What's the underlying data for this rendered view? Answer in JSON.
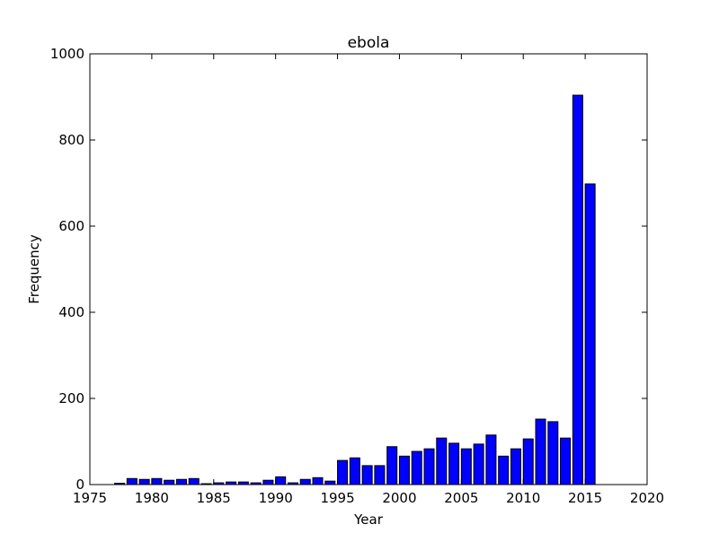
{
  "chart_data": {
    "type": "bar",
    "title": "ebola",
    "x_label": "Year",
    "y_label": "Frequency",
    "x": [
      1977,
      1978,
      1979,
      1980,
      1981,
      1982,
      1983,
      1984,
      1985,
      1986,
      1987,
      1988,
      1989,
      1990,
      1991,
      1992,
      1993,
      1994,
      1995,
      1996,
      1997,
      1998,
      1999,
      2000,
      2001,
      2002,
      2003,
      2004,
      2005,
      2006,
      2007,
      2008,
      2009,
      2010,
      2011,
      2012,
      2013,
      2014,
      2015
    ],
    "values": [
      3,
      14,
      12,
      14,
      10,
      12,
      14,
      2,
      4,
      6,
      6,
      4,
      10,
      18,
      4,
      12,
      16,
      8,
      56,
      62,
      44,
      44,
      88,
      66,
      77,
      83,
      108,
      96,
      83,
      94,
      115,
      66,
      83,
      106,
      152,
      146,
      108,
      904,
      698
    ],
    "color": "#0000ff",
    "xlim": [
      1975,
      2020
    ],
    "xticks": [
      1975,
      1980,
      1985,
      1990,
      1995,
      2000,
      2005,
      2010,
      2015,
      2020
    ],
    "ylim": [
      0,
      1000
    ],
    "yticks": [
      0,
      200,
      400,
      600,
      800,
      1000
    ]
  }
}
